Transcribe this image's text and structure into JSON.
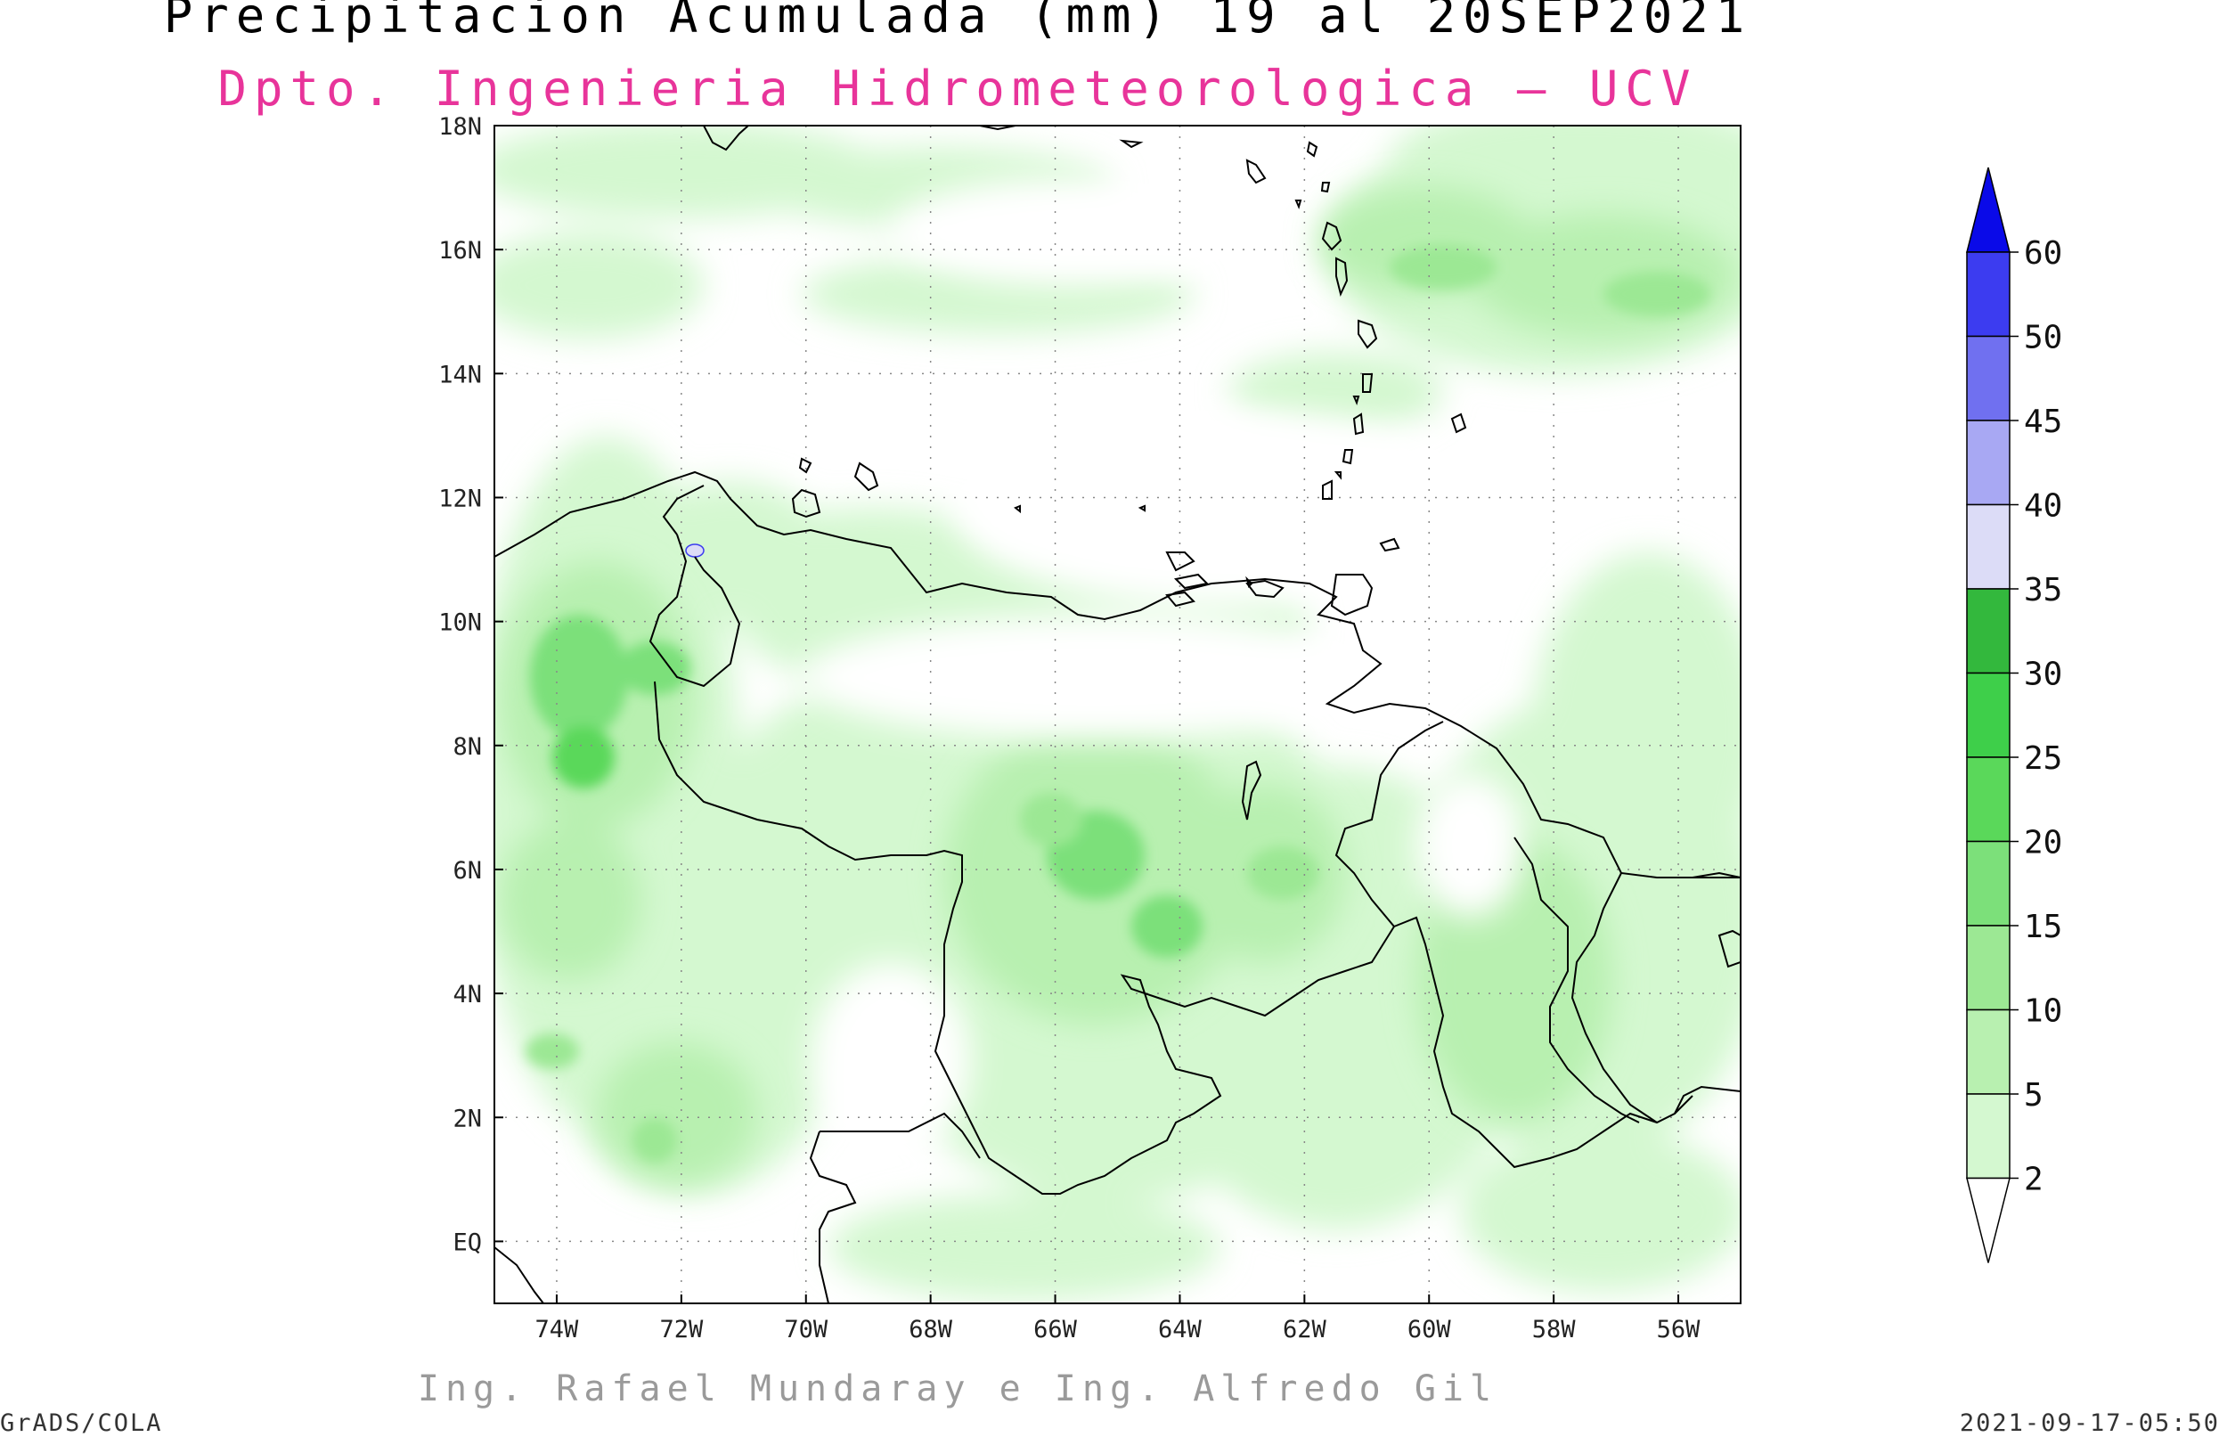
{
  "title": "Precipitacion Acumulada (mm) 19 al 20SEP2021",
  "subtitle": "Dpto. Ingenieria Hidrometeorologica — UCV",
  "credits": "Ing. Rafael Mundaray e Ing. Alfredo Gil",
  "footer_left": "GrADS/COLA",
  "footer_right": "2021-09-17-05:50",
  "map": {
    "lon_range": [
      -75,
      -55
    ],
    "lat_range": [
      -1,
      18
    ],
    "lon_ticks": [
      "74W",
      "72W",
      "70W",
      "68W",
      "66W",
      "64W",
      "62W",
      "60W",
      "58W",
      "56W"
    ],
    "lat_ticks": [
      "EQ",
      "2N",
      "4N",
      "6N",
      "8N",
      "10N",
      "12N",
      "14N",
      "16N",
      "18N"
    ],
    "grid": true
  },
  "colorbar": {
    "levels": [
      "2",
      "5",
      "10",
      "15",
      "20",
      "25",
      "30",
      "35",
      "40",
      "45",
      "50",
      "60"
    ],
    "colors": [
      "#f0fdf0",
      "#d4f8d0",
      "#b8f0b0",
      "#9ce894",
      "#7ce07a",
      "#5ad85a",
      "#3ecf4a",
      "#33b83d",
      "#dcdcf7",
      "#a8a8f3",
      "#7070f0",
      "#3c3cf0",
      "#0a0ae8"
    ]
  },
  "colors": {
    "subtitle": "#e8349a",
    "land_boundary": "#000000"
  }
}
